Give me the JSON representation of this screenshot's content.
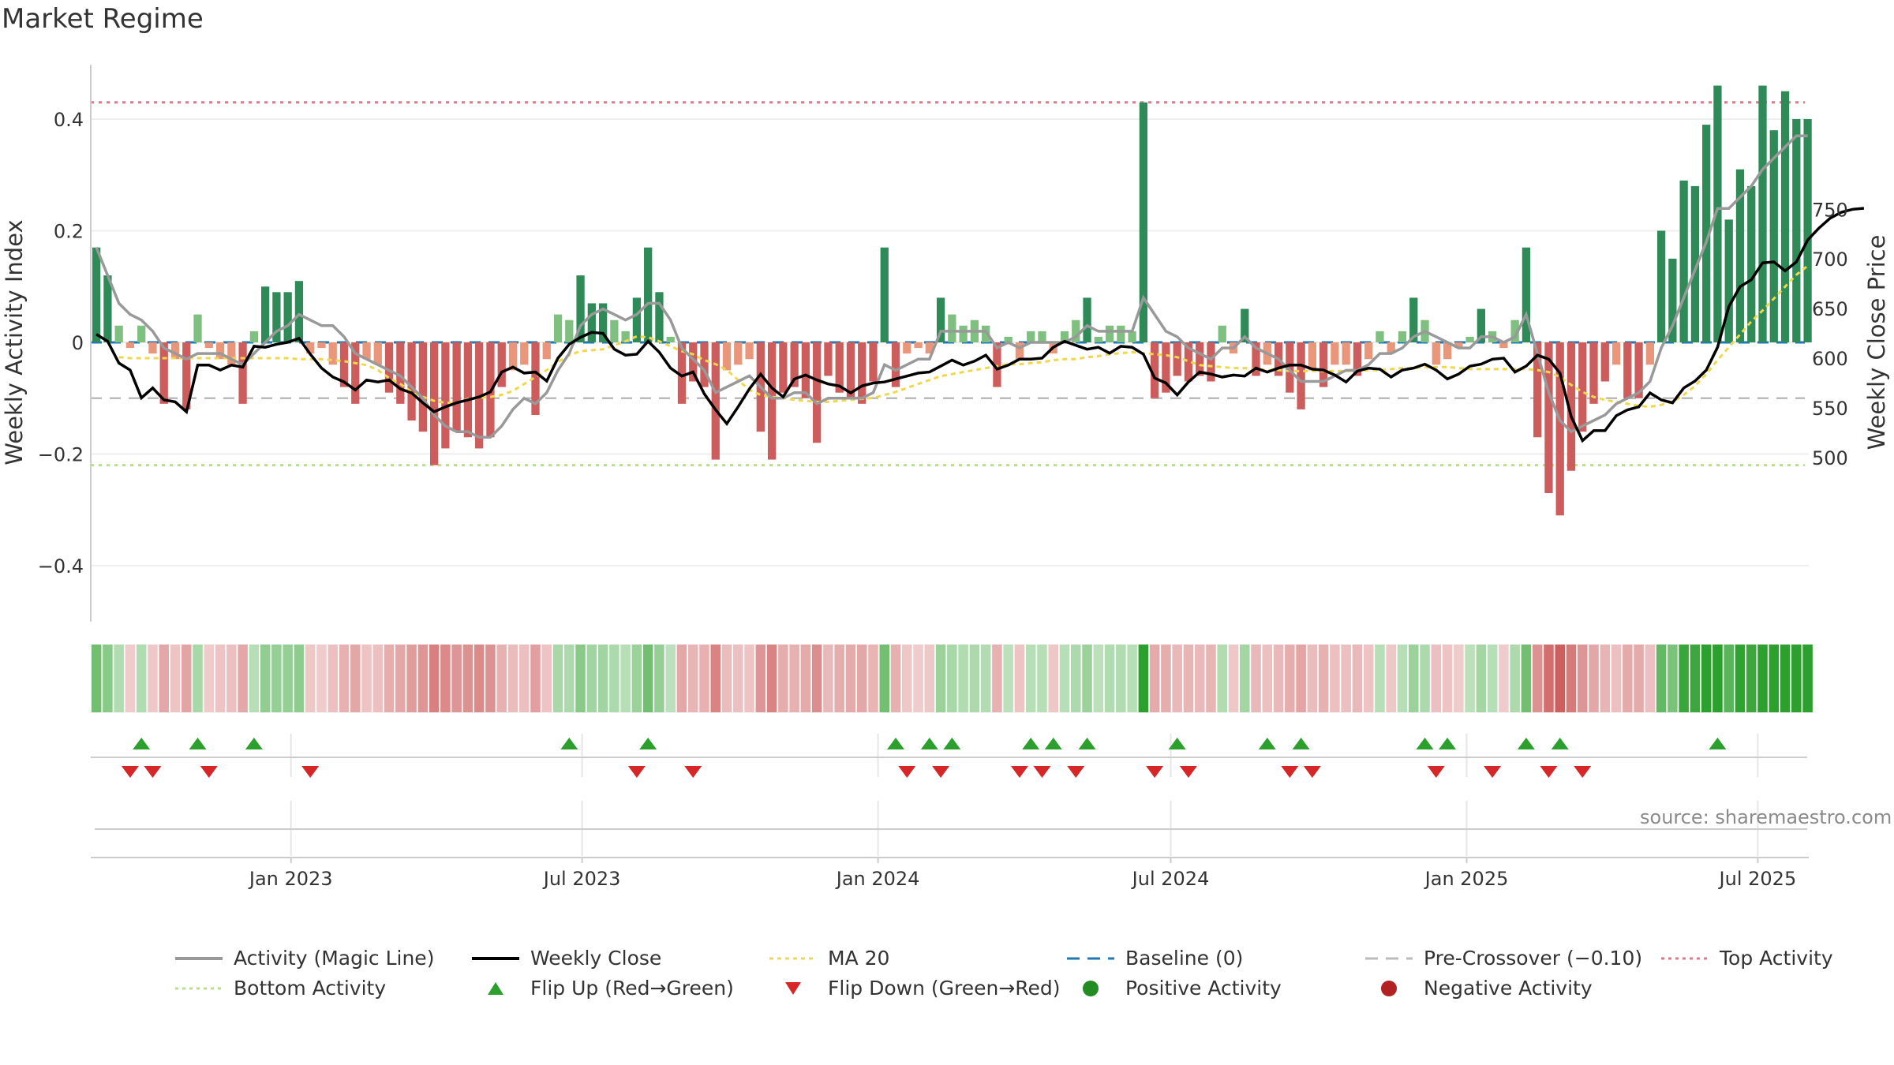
{
  "title": "Market Regime",
  "source": "source: sharemaestro.com",
  "colors": {
    "pos_strong": "#2e8b57",
    "pos_weak": "#7fbf7f",
    "neg_strong": "#cd5c5c",
    "neg_weak": "#e9967a",
    "line_activity": "#999999",
    "line_close": "#000000",
    "line_ma": "#f0d84c",
    "baseline": "#1f77b4",
    "precross": "#bbbbbb",
    "top": "#e07a8a",
    "bottom": "#b8e08a",
    "flip_up": "#2ca02c",
    "flip_down": "#d62728",
    "pos_dot": "#228b22",
    "neg_dot": "#b22222"
  },
  "legend": {
    "activity": "Activity (Magic Line)",
    "close": "Weekly Close",
    "ma": "MA 20",
    "baseline": "Baseline (0)",
    "precross": "Pre-Crossover (−0.10)",
    "top": "Top Activity",
    "bottom": "Bottom Activity",
    "flip_up": "Flip Up (Red→Green)",
    "flip_down": "Flip Down (Green→Red)",
    "pos": "Positive Activity",
    "neg": "Negative Activity"
  },
  "chart_data": {
    "type": "bar",
    "ylabel": "Weekly Activity Index",
    "y2label": "Weekly Close Price",
    "ylim": [
      -0.5,
      0.5
    ],
    "y2lim": [
      480,
      755
    ],
    "yticks": [
      "0.4",
      "0.2",
      "0",
      "−0.2",
      "−0.4"
    ],
    "y2ticks": [
      "750",
      "700",
      "650",
      "600",
      "550",
      "500"
    ],
    "xticks": [
      "Jan 2023",
      "Jul 2023",
      "Jan 2024",
      "Jul 2024",
      "Jan 2025",
      "Jul 2025"
    ],
    "first_week": "2022-09-02",
    "reference_lines": {
      "top": 0.43,
      "precross": -0.1,
      "bottom": -0.22,
      "baseline": 0
    },
    "activity": [
      0.17,
      0.12,
      0.03,
      -0.01,
      0.03,
      -0.02,
      -0.11,
      -0.03,
      -0.12,
      0.05,
      -0.01,
      -0.03,
      -0.04,
      -0.11,
      0.02,
      0.1,
      0.09,
      0.09,
      0.11,
      -0.02,
      -0.01,
      -0.04,
      -0.08,
      -0.11,
      -0.03,
      -0.04,
      -0.09,
      -0.11,
      -0.14,
      -0.16,
      -0.22,
      -0.19,
      -0.16,
      -0.17,
      -0.19,
      -0.17,
      -0.08,
      -0.05,
      -0.04,
      -0.13,
      -0.03,
      0.05,
      0.04,
      0.12,
      0.07,
      0.07,
      0.04,
      0.02,
      0.08,
      0.17,
      0.09,
      0.01,
      -0.11,
      -0.07,
      -0.08,
      -0.21,
      -0.05,
      -0.04,
      -0.03,
      -0.16,
      -0.21,
      -0.09,
      -0.08,
      -0.1,
      -0.18,
      -0.06,
      -0.09,
      -0.1,
      -0.11,
      -0.07,
      0.17,
      -0.08,
      -0.02,
      -0.01,
      -0.02,
      0.08,
      0.05,
      0.03,
      0.04,
      0.03,
      -0.08,
      0.01,
      -0.03,
      0.02,
      0.02,
      -0.02,
      0.02,
      0.04,
      0.08,
      0.01,
      0.03,
      0.03,
      0.02,
      0.43,
      -0.1,
      -0.09,
      -0.06,
      -0.07,
      -0.06,
      -0.07,
      0.03,
      -0.02,
      0.06,
      -0.06,
      -0.04,
      -0.06,
      -0.09,
      -0.12,
      -0.05,
      -0.08,
      -0.04,
      -0.04,
      -0.06,
      -0.03,
      0.02,
      -0.02,
      0.02,
      0.08,
      0.04,
      -0.04,
      -0.03,
      -0.01,
      0.01,
      0.06,
      0.02,
      -0.01,
      0.04,
      0.17,
      -0.17,
      -0.27,
      -0.31,
      -0.23,
      -0.16,
      -0.11,
      -0.07,
      -0.04,
      -0.1,
      -0.1,
      -0.04,
      0.2,
      0.15,
      0.29,
      0.28,
      0.39,
      0.46,
      0.22,
      0.31,
      0.28,
      0.46,
      0.38,
      0.45,
      0.4,
      0.4
    ],
    "magic_line": [
      0.17,
      0.12,
      0.07,
      0.05,
      0.04,
      0.02,
      -0.01,
      -0.02,
      -0.03,
      -0.02,
      -0.02,
      -0.02,
      -0.03,
      -0.04,
      -0.02,
      0.0,
      0.02,
      0.03,
      0.05,
      0.04,
      0.03,
      0.03,
      0.01,
      -0.02,
      -0.03,
      -0.04,
      -0.05,
      -0.06,
      -0.08,
      -0.1,
      -0.13,
      -0.15,
      -0.16,
      -0.16,
      -0.17,
      -0.17,
      -0.15,
      -0.12,
      -0.1,
      -0.11,
      -0.09,
      -0.05,
      -0.02,
      0.03,
      0.05,
      0.06,
      0.05,
      0.04,
      0.05,
      0.07,
      0.07,
      0.04,
      -0.01,
      -0.03,
      -0.05,
      -0.09,
      -0.08,
      -0.07,
      -0.06,
      -0.08,
      -0.1,
      -0.1,
      -0.09,
      -0.09,
      -0.11,
      -0.1,
      -0.1,
      -0.1,
      -0.1,
      -0.09,
      -0.04,
      -0.05,
      -0.04,
      -0.03,
      -0.03,
      0.02,
      0.02,
      0.02,
      0.02,
      0.02,
      -0.01,
      0.0,
      -0.01,
      0.0,
      0.0,
      0.0,
      0.0,
      0.01,
      0.03,
      0.02,
      0.02,
      0.02,
      0.02,
      0.08,
      0.05,
      0.02,
      0.01,
      -0.01,
      -0.02,
      -0.03,
      -0.01,
      -0.01,
      0.01,
      -0.01,
      -0.02,
      -0.03,
      -0.05,
      -0.07,
      -0.07,
      -0.07,
      -0.06,
      -0.05,
      -0.05,
      -0.04,
      -0.02,
      -0.02,
      -0.01,
      0.01,
      0.02,
      0.01,
      0.0,
      -0.01,
      -0.01,
      0.01,
      0.01,
      0.0,
      0.01,
      0.05,
      -0.02,
      -0.09,
      -0.14,
      -0.16,
      -0.15,
      -0.14,
      -0.13,
      -0.11,
      -0.1,
      -0.09,
      -0.07,
      -0.01,
      0.03,
      0.08,
      0.13,
      0.18,
      0.24,
      0.24,
      0.26,
      0.28,
      0.31,
      0.33,
      0.35,
      0.37,
      0.37
    ],
    "close": [
      624,
      617,
      595,
      588,
      560,
      570,
      558,
      556,
      546,
      593,
      593,
      588,
      593,
      591,
      612,
      611,
      614,
      616,
      620,
      604,
      590,
      581,
      576,
      568,
      578,
      576,
      578,
      569,
      565,
      555,
      546,
      551,
      555,
      558,
      561,
      566,
      586,
      591,
      585,
      586,
      577,
      600,
      614,
      621,
      626,
      625,
      609,
      603,
      604,
      617,
      606,
      590,
      582,
      586,
      564,
      548,
      534,
      551,
      569,
      584,
      570,
      561,
      579,
      583,
      578,
      574,
      572,
      565,
      572,
      575,
      576,
      579,
      582,
      585,
      586,
      592,
      598,
      593,
      597,
      603,
      589,
      593,
      599,
      599,
      600,
      611,
      617,
      613,
      609,
      611,
      605,
      612,
      611,
      604,
      580,
      575,
      563,
      576,
      586,
      584,
      581,
      583,
      582,
      590,
      586,
      590,
      593,
      593,
      589,
      588,
      583,
      576,
      587,
      590,
      589,
      581,
      588,
      590,
      594,
      588,
      579,
      584,
      592,
      594,
      599,
      600,
      586,
      592,
      603,
      599,
      585,
      541,
      517,
      527,
      527,
      542,
      548,
      551,
      565,
      558,
      555,
      570,
      577,
      588,
      611,
      652,
      672,
      679,
      696,
      697,
      688,
      697,
      719,
      731,
      741,
      747,
      750,
      751
    ],
    "close_ma20": [
      601,
      600,
      600,
      600,
      600,
      600,
      600,
      600,
      600,
      600,
      600,
      600,
      600,
      600,
      600,
      600,
      599,
      599,
      599,
      598,
      597,
      595,
      593,
      588,
      580,
      574,
      566,
      561,
      557,
      555,
      555,
      559,
      560,
      561,
      563,
      567,
      574,
      581,
      588,
      596,
      603,
      607,
      608,
      609,
      613,
      617,
      622,
      621,
      617,
      612,
      607,
      604,
      598,
      594,
      588,
      578,
      568,
      563,
      561,
      560,
      558,
      557,
      556,
      556,
      557,
      558,
      559,
      560,
      563,
      566,
      570,
      574,
      578,
      582,
      584,
      586,
      588,
      590,
      592,
      594,
      594,
      595,
      596,
      598,
      599,
      599,
      601,
      602,
      604,
      605,
      606,
      605,
      604,
      603,
      601,
      597,
      593,
      592,
      591,
      590,
      590,
      589,
      588,
      588,
      587,
      587,
      587,
      587,
      587,
      587,
      587,
      588,
      588,
      589,
      590,
      590,
      591,
      591,
      591,
      590,
      589,
      589,
      589,
      589,
      589,
      589,
      588,
      586,
      581,
      573,
      566,
      561,
      558,
      556,
      554,
      552,
      551,
      553,
      556,
      563,
      572,
      584,
      598,
      611,
      624,
      637,
      648,
      660,
      672,
      684,
      693
    ],
    "flip_up_idx": [
      4,
      9,
      14,
      42,
      49,
      71,
      74,
      76,
      83,
      85,
      88,
      96,
      104,
      107,
      118,
      120,
      127,
      130,
      144
    ],
    "flip_down_idx": [
      3,
      5,
      10,
      19,
      48,
      53,
      72,
      75,
      82,
      84,
      87,
      94,
      97,
      106,
      108,
      119,
      124,
      129,
      132
    ]
  }
}
